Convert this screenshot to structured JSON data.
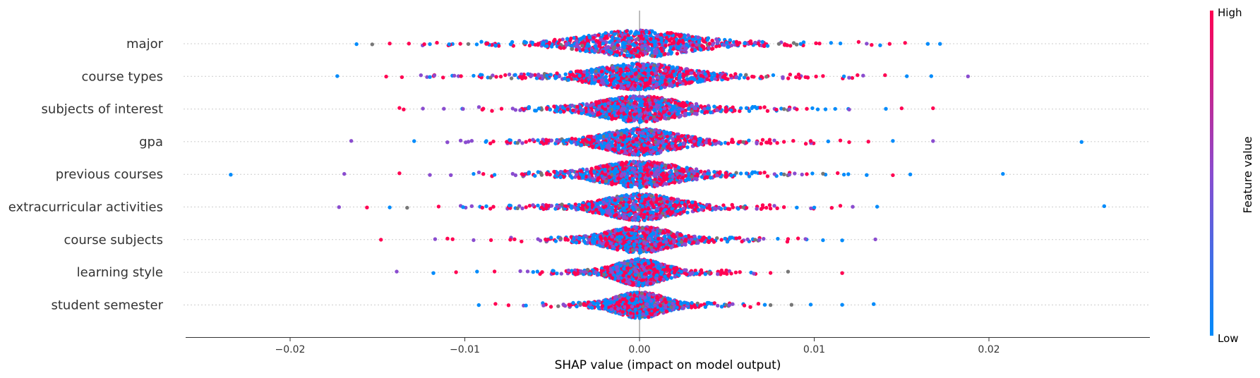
{
  "chart_data": {
    "type": "scatter",
    "subtype": "shap-beeswarm",
    "xlabel": "SHAP value (impact on model output)",
    "xlim": [
      -0.0262,
      0.0291
    ],
    "x_ticks": [
      -0.02,
      -0.01,
      0.0,
      0.01,
      0.02
    ],
    "x_tick_labels": [
      "−0.02",
      "−0.01",
      "0.00",
      "0.01",
      "0.02"
    ],
    "zero_line": true,
    "features": [
      {
        "name": "major",
        "spread": 0.0026,
        "extremes": [
          -0.0162,
          -0.0153,
          -0.0143,
          -0.0132,
          -0.012,
          -0.0109,
          -0.0098,
          -0.0087,
          0.0101,
          0.0115,
          0.013,
          0.0152,
          0.0165,
          0.0172
        ]
      },
      {
        "name": "course types",
        "spread": 0.0022,
        "extremes": [
          -0.0173,
          -0.0145,
          -0.0136,
          -0.012,
          -0.0106,
          -0.0095,
          -0.0082,
          0.0095,
          0.0105,
          0.0117,
          0.0128,
          0.0153,
          0.0167,
          0.0188
        ]
      },
      {
        "name": "subjects of interest",
        "spread": 0.002,
        "extremes": [
          -0.0135,
          -0.0124,
          -0.0112,
          -0.0101,
          -0.009,
          -0.0079,
          0.009,
          0.0102,
          0.0112,
          0.012,
          0.0141,
          0.015,
          0.0168
        ]
      },
      {
        "name": "gpa",
        "spread": 0.0018,
        "extremes": [
          -0.0165,
          -0.0129,
          -0.011,
          -0.0098,
          -0.0088,
          -0.0076,
          0.0088,
          0.0098,
          0.0108,
          0.012,
          0.0131,
          0.0145,
          0.0168,
          0.0253
        ]
      },
      {
        "name": "previous courses",
        "spread": 0.002,
        "extremes": [
          -0.0234,
          -0.0169,
          -0.012,
          -0.0108,
          -0.0095,
          -0.0083,
          0.0093,
          0.0105,
          0.0117,
          0.013,
          0.0145,
          0.0155,
          0.0208
        ]
      },
      {
        "name": "extracurricular activities",
        "spread": 0.0018,
        "extremes": [
          -0.0172,
          -0.0156,
          -0.0143,
          -0.0133,
          -0.0115,
          -0.0101,
          -0.009,
          0.009,
          0.01,
          0.011,
          0.0122,
          0.0136,
          0.0266
        ]
      },
      {
        "name": "course subjects",
        "spread": 0.0016,
        "extremes": [
          -0.0148,
          -0.0117,
          -0.0107,
          -0.0095,
          -0.0085,
          -0.0074,
          0.0085,
          0.0095,
          0.0105,
          0.0116,
          0.0135
        ]
      },
      {
        "name": "learning style",
        "spread": 0.0012,
        "extremes": [
          -0.0139,
          -0.0118,
          -0.0105,
          -0.0093,
          -0.0083,
          0.0075,
          0.0085,
          0.0116
        ]
      },
      {
        "name": "student semester",
        "spread": 0.0012,
        "extremes": [
          -0.0092,
          -0.0075,
          -0.0065,
          -0.0055,
          0.006,
          0.0075,
          0.0087,
          0.0098,
          0.0116,
          0.0134
        ]
      }
    ],
    "colorbar": {
      "title": "Feature value",
      "high_label": "High",
      "low_label": "Low",
      "low_color": "#008bfb",
      "high_color": "#ff0052"
    },
    "colors": {
      "low": "#008bfb",
      "mid": "#8a4ccf",
      "high": "#ff0052",
      "missing": "#777777",
      "row_line": "#cccccc",
      "zero_line": "#999999"
    }
  }
}
